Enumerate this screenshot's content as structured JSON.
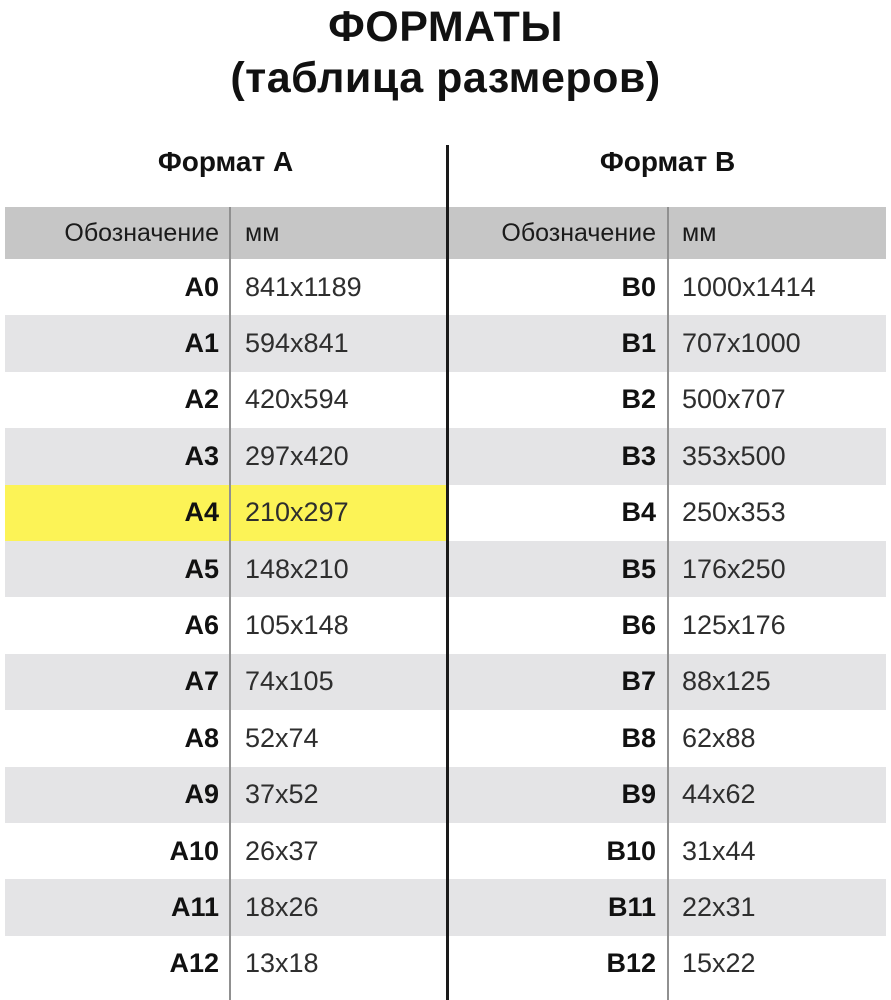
{
  "title": {
    "line1": "ФОРМАТЫ",
    "line2": "(таблица размеров)"
  },
  "colors": {
    "highlight_yellow": "#FCF356",
    "stripe_gray": "#E4E4E6",
    "header_gray": "#C6C6C6",
    "divider_gray": "#909090",
    "center_line_black": "#1A1A1A",
    "text_black": "#111111"
  },
  "chart_data": {
    "type": "table",
    "title": "ФОРМАТЫ (таблица размеров)",
    "tables": [
      {
        "name": "Формат А",
        "columns": [
          "Обозначение",
          "мм"
        ],
        "highlighted_row": "A4",
        "rows": [
          [
            "A0",
            "841x1189"
          ],
          [
            "A1",
            "594x841"
          ],
          [
            "A2",
            "420x594"
          ],
          [
            "A3",
            "297x420"
          ],
          [
            "A4",
            "210x297"
          ],
          [
            "A5",
            "148x210"
          ],
          [
            "A6",
            "105x148"
          ],
          [
            "A7",
            "74x105"
          ],
          [
            "A8",
            "52x74"
          ],
          [
            "A9",
            "37x52"
          ],
          [
            "A10",
            "26x37"
          ],
          [
            "A11",
            "18x26"
          ],
          [
            "A12",
            "13x18"
          ]
        ]
      },
      {
        "name": "Формат В",
        "columns": [
          "Обозначение",
          "мм"
        ],
        "highlighted_row": null,
        "rows": [
          [
            "B0",
            "1000x1414"
          ],
          [
            "B1",
            "707x1000"
          ],
          [
            "B2",
            "500x707"
          ],
          [
            "B3",
            "353x500"
          ],
          [
            "B4",
            "250x353"
          ],
          [
            "B5",
            "176x250"
          ],
          [
            "B6",
            "125x176"
          ],
          [
            "B7",
            "88x125"
          ],
          [
            "B8",
            "62x88"
          ],
          [
            "B9",
            "44x62"
          ],
          [
            "B10",
            "31x44"
          ],
          [
            "B11",
            "22x31"
          ],
          [
            "B12",
            "15x22"
          ]
        ]
      }
    ]
  }
}
